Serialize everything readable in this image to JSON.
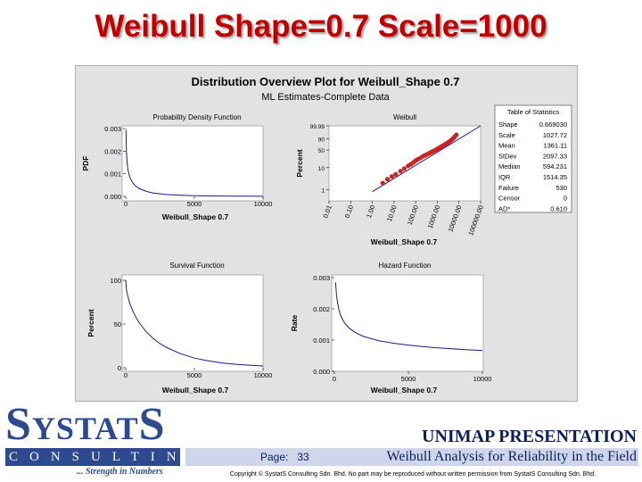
{
  "slide": {
    "title": "Weibull Shape=0.7 Scale=1000",
    "logo_main_s1": "S",
    "logo_main_mid": "YSTAT",
    "logo_main_s2": "S",
    "logo_consulting": "CONSULTING",
    "logo_tagline": "... Strength in Numbers",
    "presentation_title": "UNIMAP PRESENTATION",
    "page_label": "Page:",
    "page_number": "33",
    "footer_title": "Weibull Analysis for Reliability in the Field",
    "copyright": "Copyright © SystatS Consulting Sdn. Bhd. No part may be reproduced without written permission from SystatS Consulting Sdn. Bhd.",
    "colors": {
      "title_red": "#c00000",
      "brand_blue": "#2e4a8f",
      "curve_navy": "#1a1a8c",
      "point_red": "#cc2222"
    }
  },
  "chart_data": [
    {
      "type": "line",
      "name": "pdf",
      "title": "Distribution Overview Plot for Weibull_Shape 0.7",
      "subtitle": "ML Estimates-Complete Data",
      "panel_title": "Probability Density Function",
      "xlabel": "Weibull_Shape 0.7",
      "ylabel": "PDF",
      "xlim": [
        0,
        10000
      ],
      "ylim": [
        0,
        0.003
      ],
      "x_ticks": [
        "0",
        "5000",
        "10000"
      ],
      "y_ticks": [
        "0.000",
        "0.001",
        "0.002",
        "0.003"
      ],
      "x": [
        20,
        40,
        60,
        100,
        150,
        200,
        300,
        400,
        500,
        700,
        1000,
        1500,
        2000,
        3000,
        4000,
        5000,
        6000,
        7000,
        8000,
        9000,
        10000
      ],
      "y": [
        0.00295,
        0.00225,
        0.00192,
        0.00152,
        0.00124,
        0.00107,
        0.00085,
        0.00071,
        0.00061,
        0.00047,
        0.00034,
        0.00022,
        0.00015,
        8e-05,
        5e-05,
        3e-05,
        2e-05,
        1.4e-05,
        1e-05,
        7e-06,
        5e-06
      ]
    },
    {
      "type": "scatter",
      "name": "probability-plot",
      "panel_title": "Weibull",
      "xlabel": "Weibull_Shape 0.7",
      "ylabel": "Percent",
      "x_scale": "log",
      "y_scale": "weibull",
      "x_ticks": [
        "0.01",
        "0.10",
        "1.00",
        "10.00",
        "100.00",
        "1000.00",
        "10000.00",
        "100000.00"
      ],
      "y_ticks": [
        "1",
        "10",
        "50",
        "90",
        "99.99"
      ],
      "fit_line": {
        "x": [
          1,
          100000
        ],
        "y": [
          0.8,
          99.99
        ]
      },
      "x": [
        3,
        5,
        8,
        12,
        20,
        30,
        45,
        60,
        80,
        100,
        130,
        170,
        220,
        280,
        350,
        430,
        520,
        620,
        740,
        880,
        1000,
        1200,
        1450,
        1750,
        2100,
        2500,
        3000,
        3600,
        4300,
        5200,
        6300,
        7600
      ],
      "y": [
        2,
        3,
        4,
        5,
        7,
        9,
        12,
        14,
        17,
        20,
        23,
        26,
        30,
        33,
        36,
        39,
        42,
        45,
        48,
        51,
        54,
        58,
        62,
        66,
        70,
        74,
        78,
        82,
        86,
        90,
        94,
        97
      ]
    },
    {
      "type": "table",
      "name": "table-of-statistics",
      "title": "Table of Statistics",
      "rows": [
        {
          "label": "Shape",
          "value": "0.669030"
        },
        {
          "label": "Scale",
          "value": "1027.72"
        },
        {
          "label": "Mean",
          "value": "1361.11"
        },
        {
          "label": "StDev",
          "value": "2097.33"
        },
        {
          "label": "Median",
          "value": "594.231"
        },
        {
          "label": "IQR",
          "value": "1514.35"
        },
        {
          "label": "Failure",
          "value": "530"
        },
        {
          "label": "Censor",
          "value": "0"
        },
        {
          "label": "AD*",
          "value": "0.610"
        }
      ]
    },
    {
      "type": "line",
      "name": "survival",
      "panel_title": "Survival Function",
      "xlabel": "Weibull_Shape 0.7",
      "ylabel": "Percent",
      "xlim": [
        0,
        10000
      ],
      "ylim": [
        0,
        100
      ],
      "x_ticks": [
        "0",
        "5000",
        "10000"
      ],
      "y_ticks": [
        "0",
        "50",
        "100"
      ],
      "x": [
        0,
        50,
        100,
        200,
        300,
        500,
        700,
        1000,
        1500,
        2000,
        2500,
        3000,
        4000,
        5000,
        6000,
        7000,
        8000,
        9000,
        10000
      ],
      "y": [
        100,
        89.5,
        85.5,
        79,
        73.5,
        65.5,
        59,
        51,
        41,
        33.5,
        27.5,
        23,
        16,
        11,
        8,
        5.5,
        4,
        3,
        2
      ]
    },
    {
      "type": "line",
      "name": "hazard",
      "panel_title": "Hazard Function",
      "xlabel": "Weibull_Shape 0.7",
      "ylabel": "Rate",
      "xlim": [
        0,
        10000
      ],
      "ylim": [
        0,
        0.003
      ],
      "x_ticks": [
        "0",
        "5000",
        "10000"
      ],
      "y_ticks": [
        "0.000",
        "0.001",
        "0.002",
        "0.003"
      ],
      "x": [
        80,
        100,
        150,
        200,
        300,
        400,
        500,
        700,
        1000,
        1500,
        2000,
        3000,
        4000,
        5000,
        6000,
        7000,
        8000,
        9000,
        10000
      ],
      "y": [
        0.00285,
        0.0027,
        0.0024,
        0.00225,
        0.00198,
        0.00182,
        0.00171,
        0.00154,
        0.00138,
        0.00122,
        0.00111,
        0.00098,
        0.0009,
        0.00084,
        0.00079,
        0.00075,
        0.00072,
        0.00069,
        0.00067
      ]
    }
  ]
}
